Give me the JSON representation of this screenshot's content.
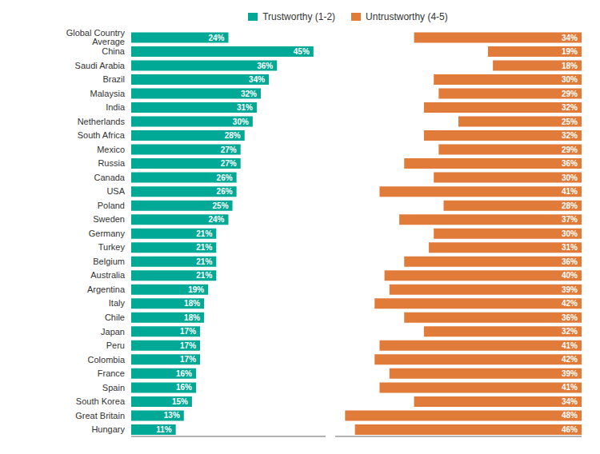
{
  "chart_data": [
    {
      "type": "bar",
      "orientation": "horizontal",
      "categories": [
        "Global Country Average",
        "China",
        "Saudi Arabia",
        "Brazil",
        "Malaysia",
        "India",
        "Netherlands",
        "South Africa",
        "Mexico",
        "Russia",
        "Canada",
        "USA",
        "Poland",
        "Sweden",
        "Germany",
        "Turkey",
        "Belgium",
        "Australia",
        "Argentina",
        "Italy",
        "Chile",
        "Japan",
        "Peru",
        "Colombia",
        "France",
        "Spain",
        "South Korea",
        "Great Britain",
        "Hungary"
      ],
      "series": [
        {
          "name": "Trustworthy (1-2)",
          "color": "#00A896",
          "values": [
            24,
            45,
            36,
            34,
            32,
            31,
            30,
            28,
            27,
            27,
            26,
            26,
            25,
            24,
            21,
            21,
            21,
            21,
            19,
            18,
            18,
            17,
            17,
            17,
            16,
            16,
            15,
            13,
            11
          ],
          "value_labels": [
            "24%",
            "45%",
            "36%",
            "34%",
            "32%",
            "31%",
            "30%",
            "28%",
            "27%",
            "27%",
            "26%",
            "26%",
            "25%",
            "24%",
            "21%",
            "21%",
            "21%",
            "21%",
            "19%",
            "18%",
            "18%",
            "17%",
            "17%",
            "17%",
            "16%",
            "16%",
            "15%",
            "13%",
            "11%"
          ]
        }
      ],
      "xlim": [
        0,
        48
      ],
      "data_labels": true,
      "tick_labels": "y",
      "grid": false,
      "legend": "top"
    },
    {
      "type": "bar",
      "orientation": "horizontal",
      "categories": [
        "Global Country Average",
        "China",
        "Saudi Arabia",
        "Brazil",
        "Malaysia",
        "India",
        "Netherlands",
        "South Africa",
        "Mexico",
        "Russia",
        "Canada",
        "USA",
        "Poland",
        "Sweden",
        "Germany",
        "Turkey",
        "Belgium",
        "Australia",
        "Argentina",
        "Italy",
        "Chile",
        "Japan",
        "Peru",
        "Colombia",
        "France",
        "Spain",
        "South Korea",
        "Great Britain",
        "Hungary"
      ],
      "series": [
        {
          "name": "Untrustworthy (4-5)",
          "color": "#E07B39",
          "values": [
            34,
            19,
            18,
            30,
            29,
            32,
            25,
            32,
            29,
            36,
            30,
            41,
            28,
            37,
            30,
            31,
            36,
            40,
            39,
            42,
            36,
            32,
            41,
            42,
            39,
            41,
            34,
            48,
            46
          ],
          "value_labels": [
            "34%",
            "19%",
            "18%",
            "30%",
            "29%",
            "32%",
            "25%",
            "32%",
            "29%",
            "36%",
            "30%",
            "41%",
            "28%",
            "37%",
            "30%",
            "31%",
            "36%",
            "40%",
            "39%",
            "42%",
            "36%",
            "32%",
            "41%",
            "42%",
            "39%",
            "41%",
            "34%",
            "48%",
            "46%"
          ]
        }
      ],
      "xlim": [
        50,
        0
      ],
      "data_labels": true,
      "tick_labels": false,
      "grid": false,
      "legend": "top"
    }
  ]
}
